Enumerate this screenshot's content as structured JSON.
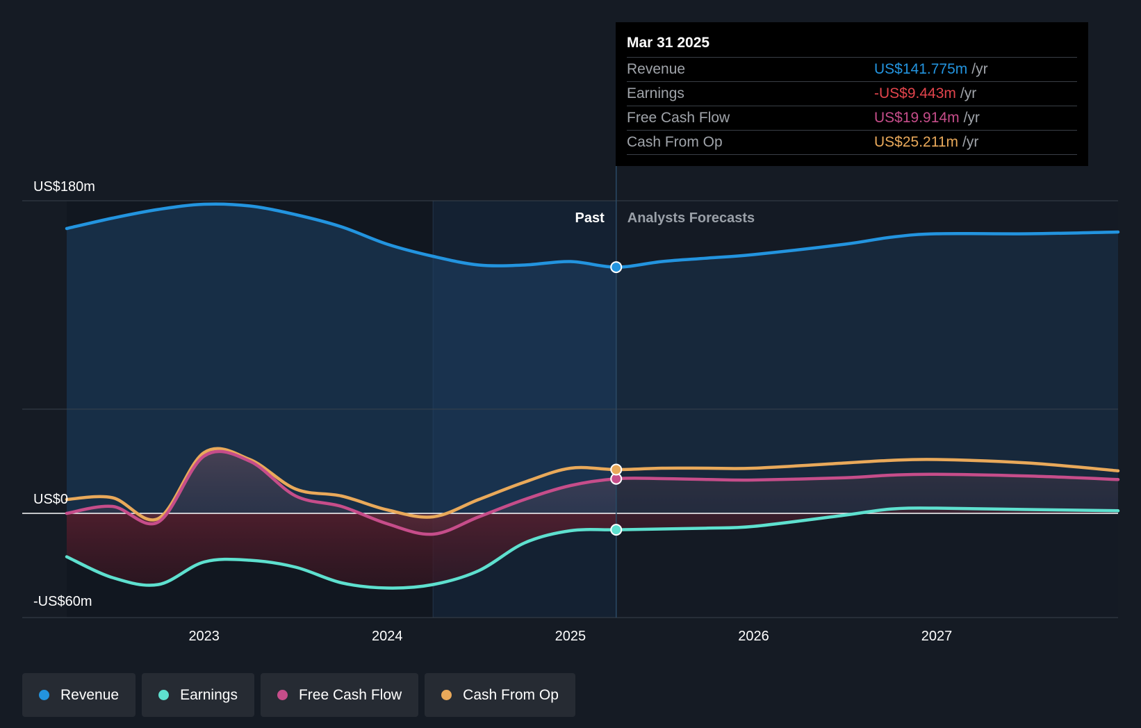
{
  "chart_data": {
    "type": "area",
    "title": "",
    "y_axis": {
      "min": -60,
      "max": 180,
      "unit": "US$m",
      "labels": [
        {
          "value": 180,
          "text": "US$180m"
        },
        {
          "value": 0,
          "text": "US$0"
        },
        {
          "value": -60,
          "text": "-US$60m"
        }
      ],
      "gridlines": [
        180,
        60,
        0
      ]
    },
    "x_axis": {
      "min": 2022.25,
      "max": 2027.99,
      "ticks": [
        {
          "value": 2023,
          "text": "2023"
        },
        {
          "value": 2024,
          "text": "2024"
        },
        {
          "value": 2025,
          "text": "2025"
        },
        {
          "value": 2026,
          "text": "2026"
        },
        {
          "value": 2027,
          "text": "2027"
        }
      ]
    },
    "divider": {
      "x": 2025.25,
      "past_label": "Past",
      "forecast_label": "Analysts Forecasts"
    },
    "highlight_start": 2024.25,
    "series": [
      {
        "name": "Revenue",
        "color": "#2394df",
        "fill": true,
        "marker": 141.775,
        "points": [
          [
            2022.25,
            164
          ],
          [
            2022.5,
            170
          ],
          [
            2022.75,
            175
          ],
          [
            2023.0,
            178
          ],
          [
            2023.25,
            177
          ],
          [
            2023.5,
            172
          ],
          [
            2023.75,
            165
          ],
          [
            2024.0,
            155
          ],
          [
            2024.25,
            148
          ],
          [
            2024.5,
            143
          ],
          [
            2024.75,
            143
          ],
          [
            2025.0,
            145
          ],
          [
            2025.25,
            141.775
          ],
          [
            2025.5,
            145
          ],
          [
            2025.75,
            147
          ],
          [
            2026.0,
            149
          ],
          [
            2026.5,
            155
          ],
          [
            2026.75,
            159
          ],
          [
            2027.0,
            161
          ],
          [
            2027.5,
            161
          ],
          [
            2027.99,
            162
          ]
        ]
      },
      {
        "name": "Earnings",
        "color": "#5ee0cf",
        "fill": true,
        "marker": -9.443,
        "points": [
          [
            2022.25,
            -25
          ],
          [
            2022.5,
            -37
          ],
          [
            2022.75,
            -41
          ],
          [
            2023.0,
            -28
          ],
          [
            2023.25,
            -27
          ],
          [
            2023.5,
            -31
          ],
          [
            2023.75,
            -40
          ],
          [
            2024.0,
            -43
          ],
          [
            2024.25,
            -41
          ],
          [
            2024.5,
            -33
          ],
          [
            2024.75,
            -17
          ],
          [
            2025.0,
            -10
          ],
          [
            2025.25,
            -9.443
          ],
          [
            2025.5,
            -9
          ],
          [
            2025.75,
            -8.5
          ],
          [
            2026.0,
            -7.5
          ],
          [
            2026.5,
            -1
          ],
          [
            2026.75,
            2.5
          ],
          [
            2027.0,
            3
          ],
          [
            2027.5,
            2.2
          ],
          [
            2027.99,
            1.5
          ]
        ]
      },
      {
        "name": "Free Cash Flow",
        "color": "#c64d8a",
        "fill": true,
        "marker": 19.914,
        "points": [
          [
            2022.25,
            0
          ],
          [
            2022.5,
            4
          ],
          [
            2022.75,
            -5
          ],
          [
            2023.0,
            33
          ],
          [
            2023.25,
            30
          ],
          [
            2023.5,
            10
          ],
          [
            2023.75,
            4
          ],
          [
            2024.0,
            -6
          ],
          [
            2024.25,
            -12
          ],
          [
            2024.5,
            -2
          ],
          [
            2024.75,
            8
          ],
          [
            2025.0,
            16
          ],
          [
            2025.25,
            19.914
          ],
          [
            2025.5,
            20
          ],
          [
            2025.75,
            19.5
          ],
          [
            2026.0,
            19.2
          ],
          [
            2026.5,
            20.5
          ],
          [
            2026.75,
            22
          ],
          [
            2027.0,
            22.5
          ],
          [
            2027.5,
            21.5
          ],
          [
            2027.99,
            19.5
          ]
        ]
      },
      {
        "name": "Cash From Op",
        "color": "#e9a95a",
        "fill": false,
        "marker": 25.211,
        "points": [
          [
            2022.25,
            8
          ],
          [
            2022.5,
            9
          ],
          [
            2022.75,
            -3
          ],
          [
            2023.0,
            35
          ],
          [
            2023.25,
            31
          ],
          [
            2023.5,
            14
          ],
          [
            2023.75,
            10
          ],
          [
            2024.0,
            2
          ],
          [
            2024.25,
            -2
          ],
          [
            2024.5,
            8
          ],
          [
            2024.75,
            18
          ],
          [
            2025.0,
            26
          ],
          [
            2025.25,
            25.211
          ],
          [
            2025.5,
            26
          ],
          [
            2025.75,
            26
          ],
          [
            2026.0,
            26
          ],
          [
            2026.5,
            29
          ],
          [
            2026.75,
            30.5
          ],
          [
            2027.0,
            31
          ],
          [
            2027.5,
            29
          ],
          [
            2027.99,
            24.5
          ]
        ]
      }
    ]
  },
  "tooltip": {
    "date": "Mar 31 2025",
    "rows": [
      {
        "label": "Revenue",
        "value": "US$141.775m",
        "unit": "/yr",
        "color": "#2394df"
      },
      {
        "label": "Earnings",
        "value": "-US$9.443m",
        "unit": "/yr",
        "color": "#e2444c"
      },
      {
        "label": "Free Cash Flow",
        "value": "US$19.914m",
        "unit": "/yr",
        "color": "#c64d8a"
      },
      {
        "label": "Cash From Op",
        "value": "US$25.211m",
        "unit": "/yr",
        "color": "#e9a95a"
      }
    ]
  },
  "legend": [
    {
      "label": "Revenue",
      "color": "#2394df"
    },
    {
      "label": "Earnings",
      "color": "#5ee0cf"
    },
    {
      "label": "Free Cash Flow",
      "color": "#c64d8a"
    },
    {
      "label": "Cash From Op",
      "color": "#e9a95a"
    }
  ]
}
